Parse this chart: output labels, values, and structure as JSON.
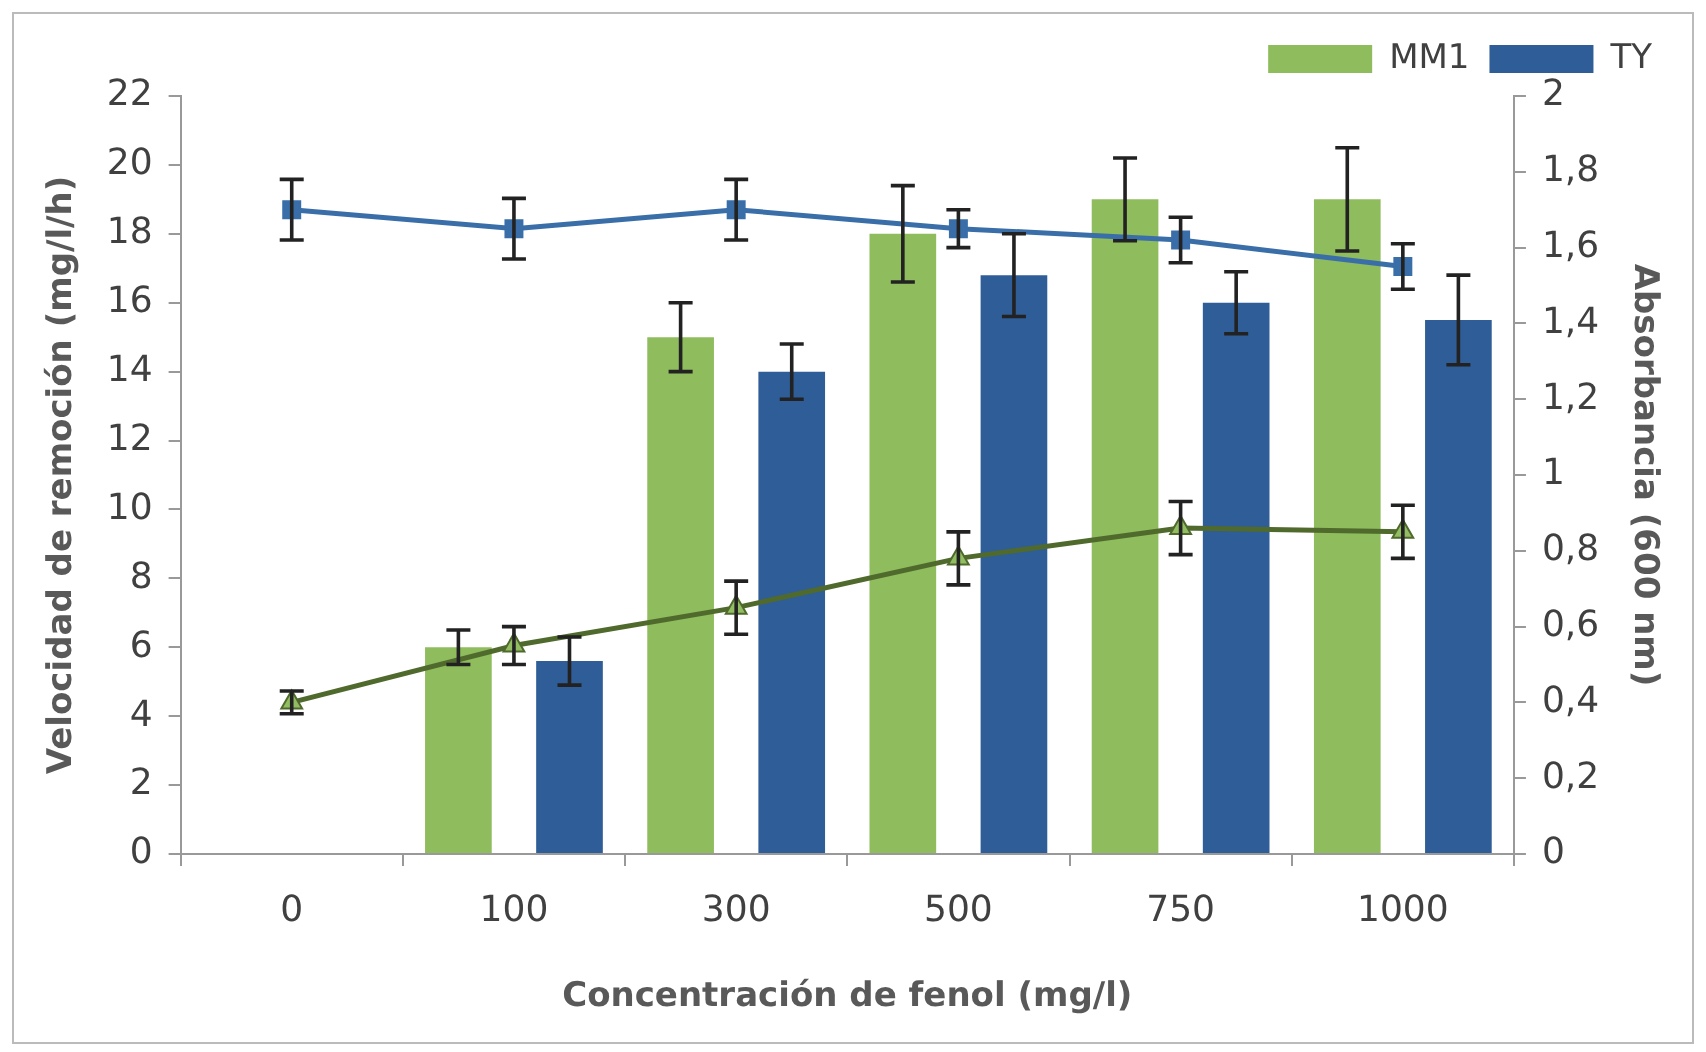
{
  "chart_data": {
    "type": "bar",
    "xlabel": "Concentración de fenol (mg/l)",
    "ylabel": "Velocidad de remoción (mg/l/h)",
    "y2label": "Absorbancia (600 nm)",
    "categories": [
      "0",
      "100",
      "300",
      "500",
      "750",
      "1000"
    ],
    "series": [
      {
        "name": "MM1",
        "color": "#8fbc5c",
        "values": [
          null,
          6,
          15,
          18,
          19,
          19
        ],
        "errors": [
          null,
          0.5,
          1,
          1.4,
          1.2,
          1.5
        ]
      },
      {
        "name": "TY",
        "color": "#2f5d97",
        "values": [
          null,
          5.6,
          14,
          16.8,
          16,
          15.5
        ],
        "errors": [
          null,
          0.7,
          0.8,
          1.2,
          0.9,
          1.3
        ]
      },
      {
        "type": "line",
        "axis": "y2",
        "color": "#3a6ea8",
        "marker": "square",
        "values": [
          1.7,
          1.65,
          1.7,
          1.65,
          1.62,
          1.55
        ],
        "errors": [
          0.08,
          0.08,
          0.08,
          0.05,
          0.06,
          0.06
        ]
      },
      {
        "type": "line",
        "axis": "y2",
        "color": "#4f6a2c",
        "marker": "triangle",
        "values": [
          0.4,
          0.55,
          0.65,
          0.78,
          0.86,
          0.85
        ],
        "errors": [
          0.03,
          0.05,
          0.07,
          0.07,
          0.07,
          0.07
        ]
      }
    ],
    "ylim": [
      0,
      22
    ],
    "yticks": [
      0,
      2,
      4,
      6,
      8,
      10,
      12,
      14,
      16,
      18,
      20,
      22
    ],
    "y2lim": [
      0,
      2
    ],
    "y2ticks": [
      {
        "value": 0,
        "label": "0"
      },
      {
        "value": 0.2,
        "label": "0,2"
      },
      {
        "value": 0.4,
        "label": "0,4"
      },
      {
        "value": 0.6,
        "label": "0,6"
      },
      {
        "value": 0.8,
        "label": "0,8"
      },
      {
        "value": 1,
        "label": "1"
      },
      {
        "value": 1.2,
        "label": "1,2"
      },
      {
        "value": 1.4,
        "label": "1,4"
      },
      {
        "value": 1.6,
        "label": "1,6"
      },
      {
        "value": 1.8,
        "label": "1,8"
      },
      {
        "value": 2,
        "label": "2"
      }
    ],
    "grid": false,
    "legend": "top right"
  }
}
